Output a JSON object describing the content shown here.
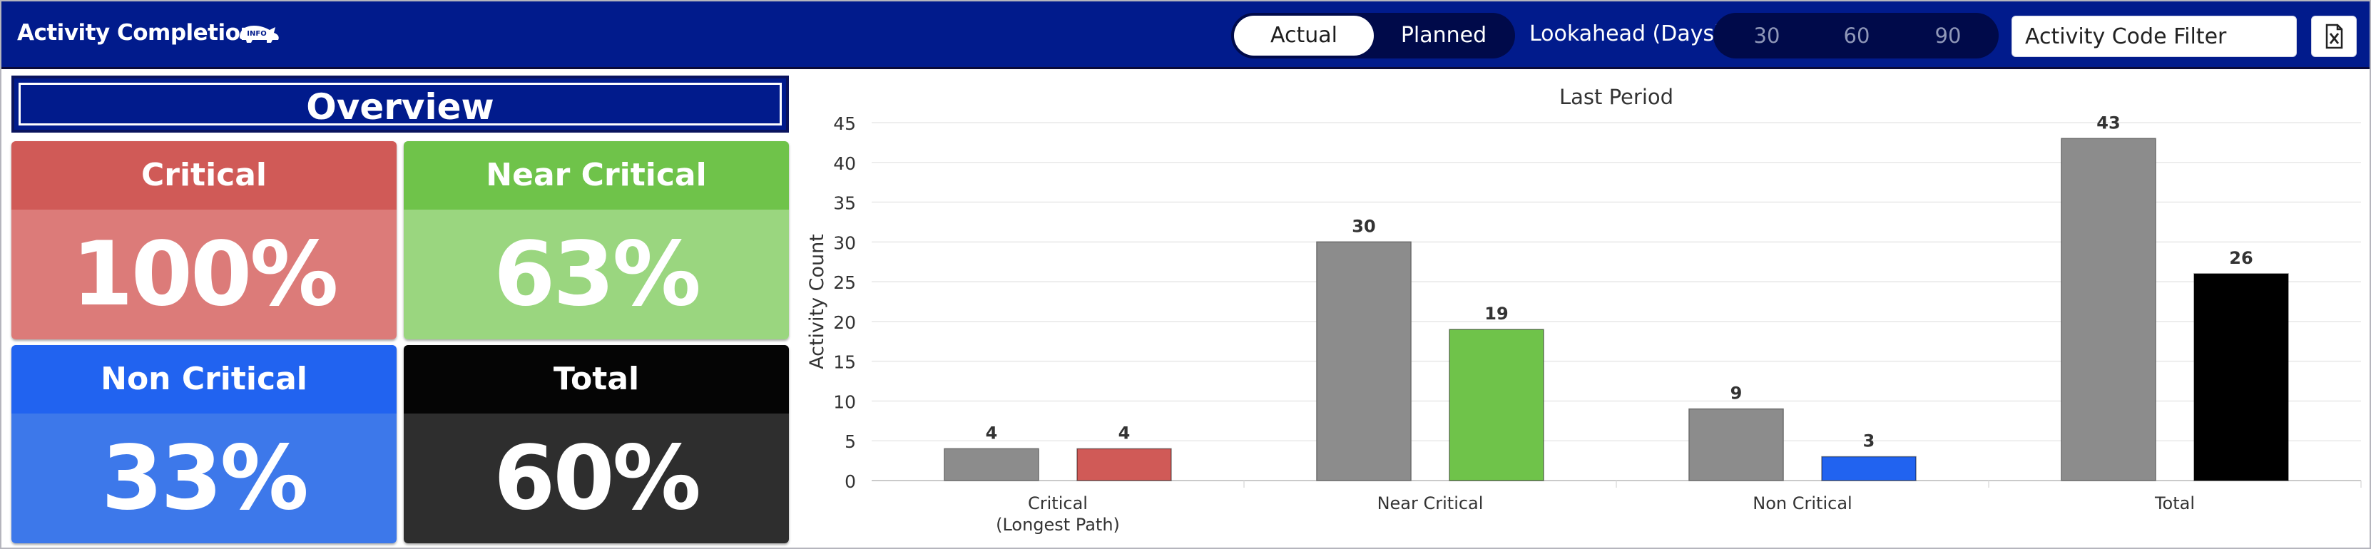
{
  "header": {
    "title": "Activity Completion",
    "info_badge": "INFO",
    "info_icon": "rhino-info-icon",
    "mode_toggle": {
      "options": [
        "Actual",
        "Planned"
      ],
      "selected": "Actual"
    },
    "lookahead": {
      "label": "Lookahead (Days):",
      "options": [
        "30",
        "60",
        "90"
      ]
    },
    "filter": {
      "placeholder": "Activity Code Filter",
      "value": ""
    },
    "export_icon": "excel-icon"
  },
  "overview": {
    "title": "Overview",
    "cards": [
      {
        "label": "Critical",
        "value": "100%",
        "head_color": "#d05a57",
        "body_color": "#dc7b79"
      },
      {
        "label": "Near Critical",
        "value": "63%",
        "head_color": "#6fc34a",
        "body_color": "#9ad67f"
      },
      {
        "label": "Non Critical",
        "value": "33%",
        "head_color": "#2163f0",
        "body_color": "#3d78ea"
      },
      {
        "label": "Total",
        "value": "60%",
        "head_color": "#050505",
        "body_color": "#2e2e2e"
      }
    ]
  },
  "chart_data": {
    "type": "bar",
    "title": "Last Period",
    "ylabel": "Activity Count",
    "xlabel": "",
    "ylim": [
      0,
      45
    ],
    "yticks": [
      0,
      5,
      10,
      15,
      20,
      25,
      30,
      35,
      40,
      45
    ],
    "grid": true,
    "categories": [
      [
        "Critical",
        "(Longest Path)"
      ],
      [
        "Near Critical"
      ],
      [
        "Non Critical"
      ],
      [
        "Total"
      ]
    ],
    "planned": [
      4,
      30,
      9,
      43
    ],
    "actual": [
      4,
      19,
      3,
      26
    ],
    "planned_color": "#8c8c8c",
    "actual_colors": [
      "#d05a57",
      "#6fc34a",
      "#2163f0",
      "#000000"
    ]
  }
}
